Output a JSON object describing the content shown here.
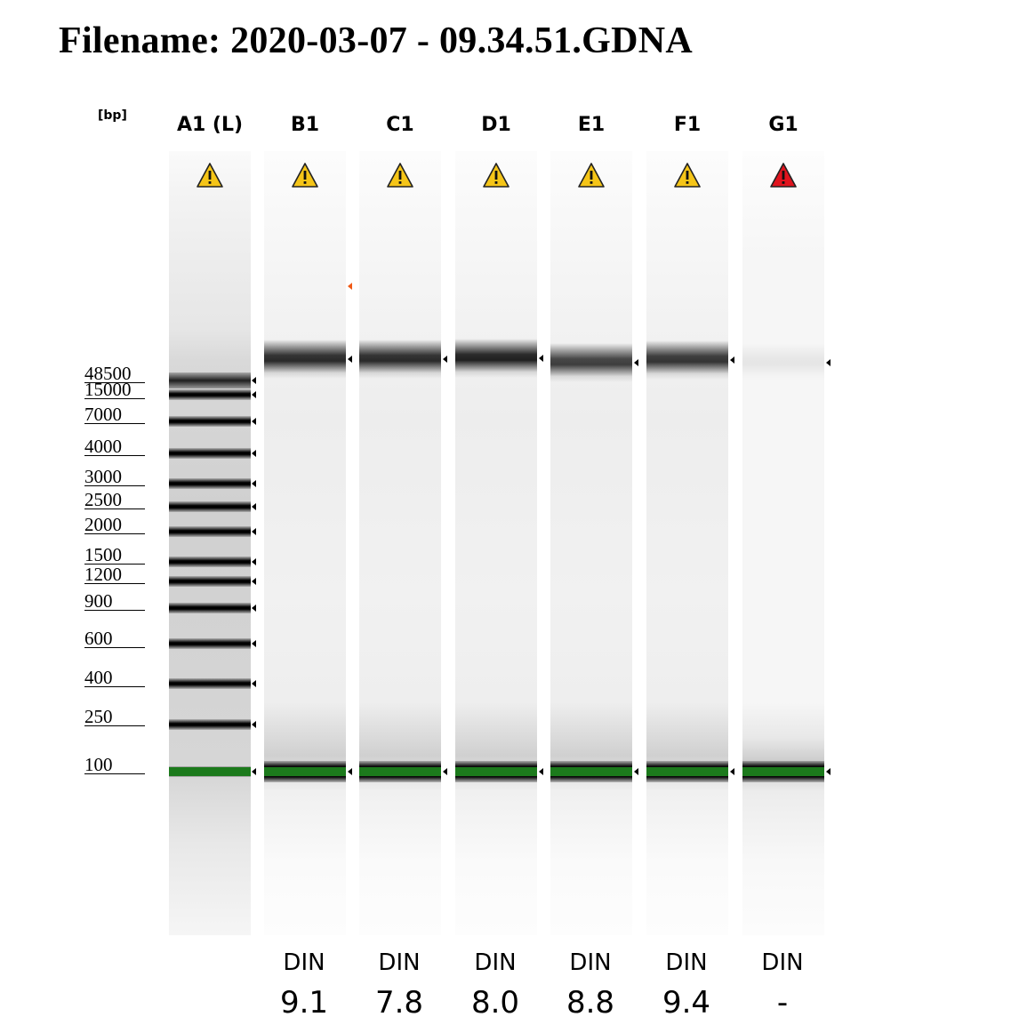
{
  "title": "Filename: 2020-03-07 - 09.34.51.GDNA",
  "unit_label": "[bp]",
  "ladder": {
    "sizes": [
      "48500",
      "15000",
      "7000",
      "4000",
      "3000",
      "2500",
      "2000",
      "1500",
      "1200",
      "900",
      "600",
      "400",
      "250",
      "100"
    ]
  },
  "lanes": [
    {
      "id": "A1 (L)",
      "type": "ladder",
      "warning": "yellow",
      "din_label": "",
      "din_value": ""
    },
    {
      "id": "B1",
      "type": "sample",
      "warning": "yellow",
      "din_label": "DIN",
      "din_value": "9.1"
    },
    {
      "id": "C1",
      "type": "sample",
      "warning": "yellow",
      "din_label": "DIN",
      "din_value": "7.8"
    },
    {
      "id": "D1",
      "type": "sample",
      "warning": "yellow",
      "din_label": "DIN",
      "din_value": "8.0"
    },
    {
      "id": "E1",
      "type": "sample",
      "warning": "yellow",
      "din_label": "DIN",
      "din_value": "8.8"
    },
    {
      "id": "F1",
      "type": "sample",
      "warning": "yellow",
      "din_label": "DIN",
      "din_value": "9.4"
    },
    {
      "id": "G1",
      "type": "sample",
      "warning": "red",
      "din_label": "DIN",
      "din_value": "-"
    }
  ],
  "colors": {
    "warning_yellow": "#f5c518",
    "warning_red": "#e0141e",
    "lower_marker": "#1c7a1c",
    "upper_marker_flag": "#f05a16"
  }
}
